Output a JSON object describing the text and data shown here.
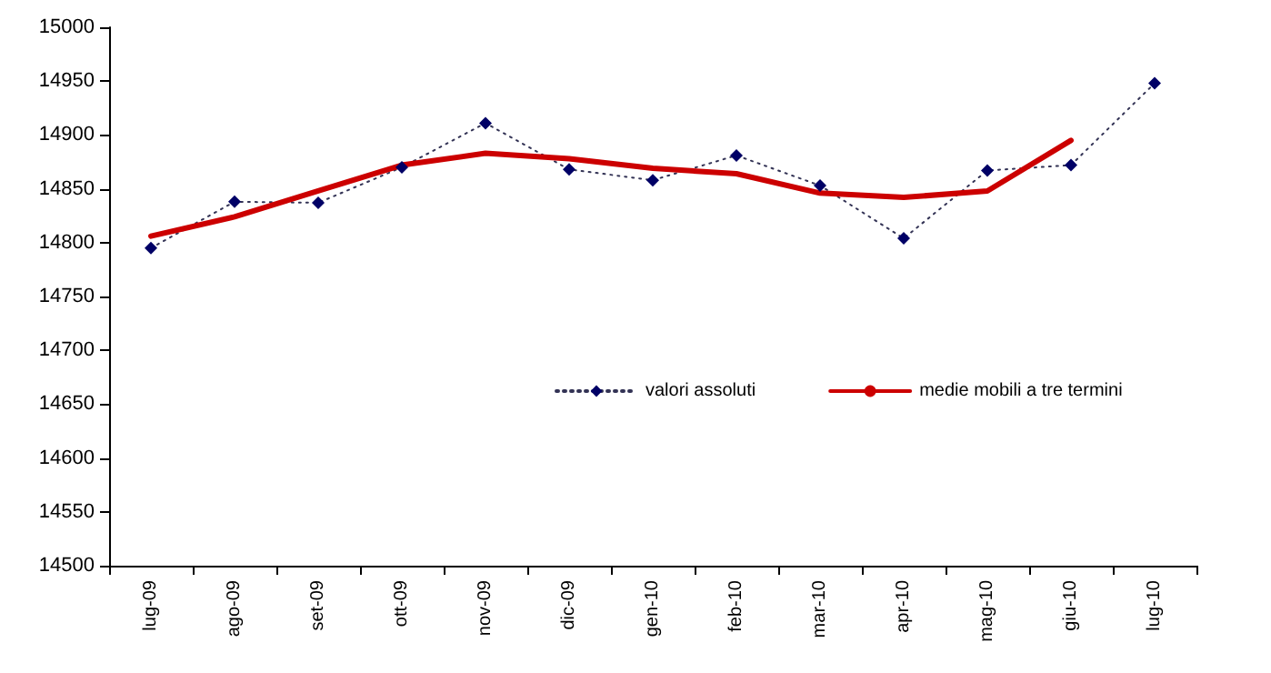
{
  "chart_data": {
    "type": "line",
    "categories": [
      "lug-09",
      "ago-09",
      "set-09",
      "ott-09",
      "nov-09",
      "dic-09",
      "gen-10",
      "feb-10",
      "mar-10",
      "apr-10",
      "mag-10",
      "giu-10",
      "lug-10"
    ],
    "series": [
      {
        "name": "valori assoluti",
        "color": "#000066",
        "marker": "diamond",
        "line_style": "dotted",
        "values": [
          14795,
          14838,
          14837,
          14870,
          14911,
          14868,
          14858,
          14881,
          14853,
          14804,
          14867,
          14872,
          14948
        ]
      },
      {
        "name": "medie mobili a tre termini",
        "color": "#cc0000",
        "marker": "none",
        "line_style": "solid",
        "values": [
          14806,
          14824,
          14848,
          14872,
          14883,
          14878,
          14869,
          14864,
          14846,
          14842,
          14848,
          14895,
          null
        ]
      }
    ],
    "ylim": [
      14500,
      15000
    ],
    "yticks": [
      14500,
      14550,
      14600,
      14650,
      14700,
      14750,
      14800,
      14850,
      14900,
      14950,
      15000
    ],
    "grid": false,
    "legend": "center"
  }
}
